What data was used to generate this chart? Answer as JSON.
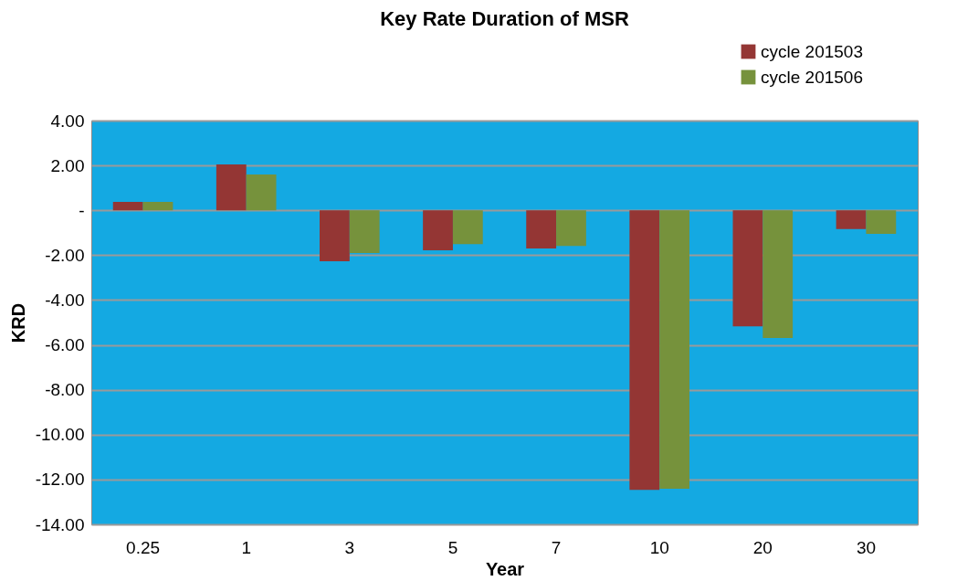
{
  "chart_data": {
    "type": "bar",
    "title": "Key Rate Duration of MSR",
    "xlabel": "Year",
    "ylabel": "KRD",
    "categories": [
      "0.25",
      "1",
      "3",
      "5",
      "7",
      "10",
      "20",
      "30"
    ],
    "series": [
      {
        "name": "cycle 201503",
        "color": "#943634",
        "values": [
          0.38,
          2.05,
          -2.27,
          -1.78,
          -1.7,
          -12.46,
          -5.17,
          -0.84
        ]
      },
      {
        "name": "cycle 201506",
        "color": "#76923c",
        "values": [
          0.38,
          1.6,
          -1.9,
          -1.51,
          -1.59,
          -12.41,
          -5.69,
          -1.05
        ]
      }
    ],
    "ylim": [
      -14,
      4
    ],
    "yticks": [
      {
        "value": -14,
        "label": "-14.00"
      },
      {
        "value": -12,
        "label": "-12.00"
      },
      {
        "value": -10,
        "label": "-10.00"
      },
      {
        "value": -8,
        "label": "-8.00"
      },
      {
        "value": -6,
        "label": "-6.00"
      },
      {
        "value": -4,
        "label": "-4.00"
      },
      {
        "value": -2,
        "label": "-2.00"
      },
      {
        "value": 0,
        "label": "-"
      },
      {
        "value": 2,
        "label": "2.00"
      },
      {
        "value": 4,
        "label": "4.00"
      }
    ],
    "grid": "y",
    "legend": "top right"
  }
}
